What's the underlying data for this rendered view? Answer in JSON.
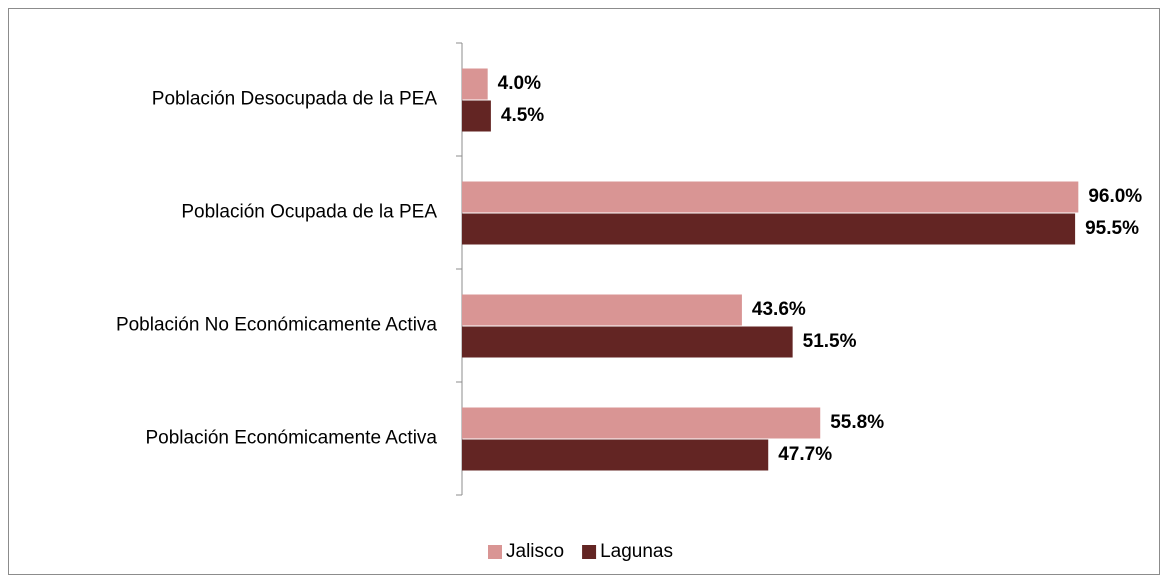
{
  "chart_data": {
    "type": "barh",
    "categories": [
      "Población Desocupada de la PEA",
      "Población Ocupada de la PEA",
      "Población No Económicamente Activa",
      "Población Económicamente Activa"
    ],
    "series": [
      {
        "name": "Jalisco",
        "color": "#d99594",
        "values": [
          4.0,
          96.0,
          43.6,
          55.8
        ],
        "value_labels": [
          "4.0%",
          "96.0%",
          "43.6%",
          "55.8%"
        ]
      },
      {
        "name": "Lagunas",
        "color": "#632523",
        "values": [
          4.5,
          95.5,
          51.5,
          47.7
        ],
        "value_labels": [
          "4.5%",
          "95.5%",
          "51.5%",
          "47.7%"
        ]
      }
    ],
    "xlim": [
      0,
      100
    ],
    "legend": "bottom"
  }
}
